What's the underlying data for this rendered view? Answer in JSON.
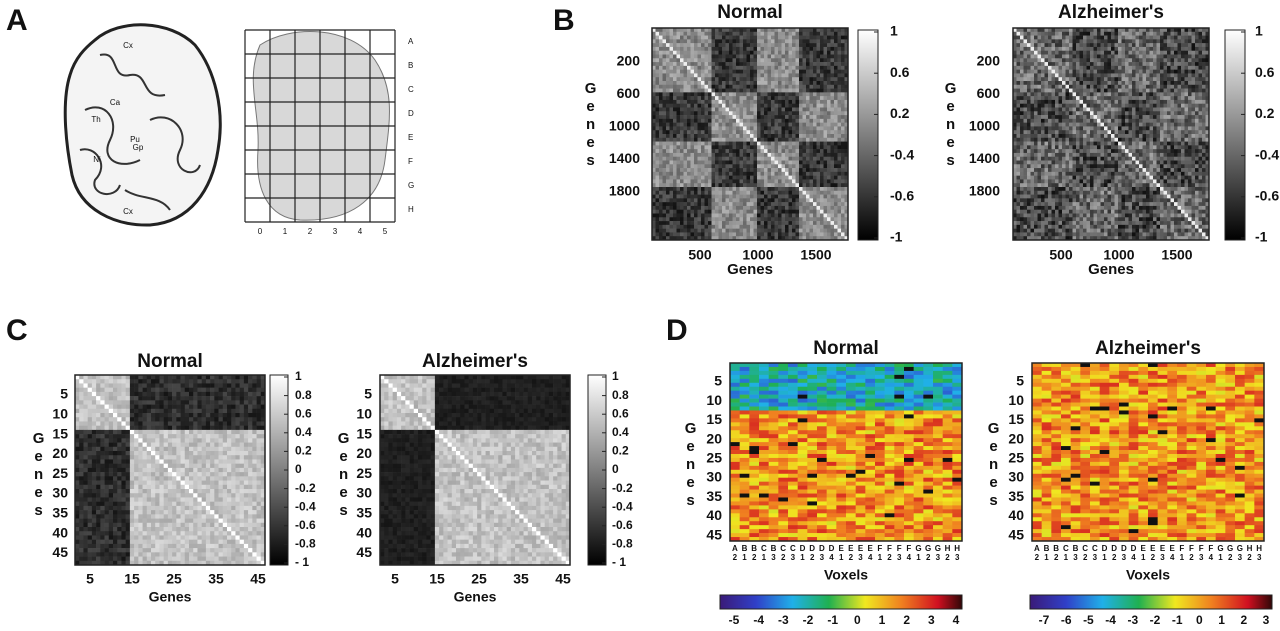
{
  "panel_a": {
    "label": "A",
    "regions": [
      "Cx",
      "Ca",
      "Th",
      "Pu",
      "Gp",
      "Ni",
      "Cx"
    ],
    "grid_rows": [
      "A",
      "B",
      "C",
      "D",
      "E",
      "F",
      "G",
      "H"
    ],
    "grid_cols": [
      "0",
      "1",
      "2",
      "3",
      "4",
      "5"
    ]
  },
  "panel_b": {
    "label": "B",
    "maps": [
      {
        "title": "Normal",
        "y_label": "Genes",
        "x_label": "Genes",
        "yticks": [
          "200",
          "600",
          "1000",
          "1400",
          "1800"
        ],
        "xticks": [
          "500",
          "1000",
          "1500"
        ],
        "colorbar_ticks": [
          "1",
          "0.6",
          "0.2",
          "-0.4",
          "-0.6",
          "-1"
        ]
      },
      {
        "title": "Alzheimer's",
        "y_label": "Genes",
        "x_label": "Genes",
        "yticks": [
          "200",
          "600",
          "1000",
          "1400",
          "1800"
        ],
        "xticks": [
          "500",
          "1000",
          "1500"
        ],
        "colorbar_ticks": [
          "1",
          "0.6",
          "0.2",
          "-0.4",
          "-0.6",
          "-1"
        ]
      }
    ]
  },
  "panel_c": {
    "label": "C",
    "maps": [
      {
        "title": "Normal",
        "y_label": "Genes",
        "x_label": "Genes",
        "yticks": [
          "5",
          "10",
          "15",
          "20",
          "25",
          "30",
          "35",
          "40",
          "45"
        ],
        "xticks": [
          "5",
          "15",
          "25",
          "35",
          "45"
        ],
        "colorbar_ticks": [
          "1",
          "0.8",
          "0.6",
          "0.4",
          "0.2",
          "0",
          "-0.2",
          "-0.4",
          "-0.6",
          "-0.8",
          "- 1"
        ]
      },
      {
        "title": "Alzheimer's",
        "y_label": "Genes",
        "x_label": "Genes",
        "yticks": [
          "5",
          "10",
          "15",
          "20",
          "25",
          "30",
          "35",
          "40",
          "45"
        ],
        "xticks": [
          "5",
          "15",
          "25",
          "35",
          "45"
        ],
        "colorbar_ticks": [
          "1",
          "0.8",
          "0.6",
          "0.4",
          "0.2",
          "0",
          "-0.2",
          "-0.4",
          "-0.6",
          "-0.8",
          "- 1"
        ]
      }
    ]
  },
  "panel_d": {
    "label": "D",
    "maps": [
      {
        "title": "Normal",
        "y_label": "Genes",
        "x_label": "Voxels",
        "yticks": [
          "5",
          "10",
          "15",
          "20",
          "25",
          "30",
          "35",
          "40",
          "45"
        ],
        "voxels": [
          [
            "A",
            "2"
          ],
          [
            "B",
            "1"
          ],
          [
            "B",
            "2"
          ],
          [
            "C",
            "1"
          ],
          [
            "B",
            "3"
          ],
          [
            "C",
            "2"
          ],
          [
            "C",
            "3"
          ],
          [
            "D",
            "1"
          ],
          [
            "D",
            "2"
          ],
          [
            "D",
            "3"
          ],
          [
            "D",
            "4"
          ],
          [
            "E",
            "1"
          ],
          [
            "E",
            "2"
          ],
          [
            "E",
            "3"
          ],
          [
            "E",
            "4"
          ],
          [
            "F",
            "1"
          ],
          [
            "F",
            "2"
          ],
          [
            "F",
            "3"
          ],
          [
            "F",
            "4"
          ],
          [
            "G",
            "1"
          ],
          [
            "G",
            "2"
          ],
          [
            "G",
            "3"
          ],
          [
            "H",
            "2"
          ],
          [
            "H",
            "3"
          ]
        ],
        "colorbar_ticks": [
          "-5",
          "-4",
          "-3",
          "-2",
          "-1",
          "0",
          "1",
          "2",
          "3",
          "4"
        ]
      },
      {
        "title": "Alzheimer's",
        "y_label": "Genes",
        "x_label": "Voxels",
        "yticks": [
          "5",
          "10",
          "15",
          "20",
          "25",
          "30",
          "35",
          "40",
          "45"
        ],
        "voxels": [
          [
            "A",
            "2"
          ],
          [
            "B",
            "1"
          ],
          [
            "B",
            "2"
          ],
          [
            "C",
            "1"
          ],
          [
            "B",
            "3"
          ],
          [
            "C",
            "2"
          ],
          [
            "C",
            "3"
          ],
          [
            "D",
            "1"
          ],
          [
            "D",
            "2"
          ],
          [
            "D",
            "3"
          ],
          [
            "D",
            "4"
          ],
          [
            "E",
            "1"
          ],
          [
            "E",
            "2"
          ],
          [
            "E",
            "3"
          ],
          [
            "E",
            "4"
          ],
          [
            "F",
            "1"
          ],
          [
            "F",
            "2"
          ],
          [
            "F",
            "3"
          ],
          [
            "F",
            "4"
          ],
          [
            "G",
            "1"
          ],
          [
            "G",
            "2"
          ],
          [
            "G",
            "3"
          ],
          [
            "H",
            "2"
          ],
          [
            "H",
            "3"
          ]
        ],
        "colorbar_ticks": [
          "-7",
          "-6",
          "-5",
          "-4",
          "-3",
          "-2",
          "-1",
          "0",
          "1",
          "2",
          "3"
        ]
      }
    ]
  }
}
